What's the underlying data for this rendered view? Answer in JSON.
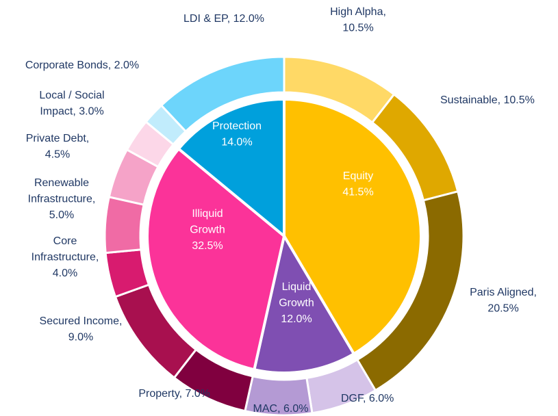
{
  "chart_data": {
    "type": "sunburst",
    "rings": [
      {
        "labels": [
          [
            "Equity",
            "41.5%"
          ],
          [
            "Liquid",
            "Growth",
            "12.0%"
          ],
          [
            "Illiquid",
            "Growth",
            "32.5%"
          ],
          [
            "Protection",
            "14.0%"
          ]
        ],
        "values": [
          41.5,
          12.0,
          32.5,
          14.0
        ],
        "colors": [
          "#ffc000",
          "#7f4fb2",
          "#fb3399",
          "#00a0dc"
        ]
      },
      {
        "labels": [
          [
            "High Alpha,",
            "10.5%"
          ],
          [
            "Sustainable, 10.5%"
          ],
          [
            "Paris Aligned,",
            "20.5%"
          ],
          [
            "DGF, 6.0%"
          ],
          [
            "MAC, 6.0%"
          ],
          [
            "Property, 7.0%"
          ],
          [
            "Secured Income,",
            "9.0%"
          ],
          [
            "Core",
            "Infrastructure,",
            "4.0%"
          ],
          [
            "Renewable",
            "Infrastructure,",
            "5.0%"
          ],
          [
            "Private Debt,",
            "4.5%"
          ],
          [
            "Local / Social",
            "Impact, 3.0%"
          ],
          [
            "Corporate Bonds, 2.0%"
          ],
          [
            "LDI & EP, 12.0%"
          ]
        ],
        "values": [
          10.5,
          10.5,
          20.5,
          6.0,
          6.0,
          7.0,
          9.0,
          4.0,
          5.0,
          4.5,
          3.0,
          2.0,
          12.0
        ],
        "colors": [
          "#ffd966",
          "#dfa800",
          "#8b6a00",
          "#d5c3e8",
          "#b49ad4",
          "#80003f",
          "#a8104f",
          "#d81b6f",
          "#f06ba5",
          "#f5a3c8",
          "#fcd7e8",
          "#c1ecfc",
          "#6dd5fb"
        ]
      }
    ]
  }
}
